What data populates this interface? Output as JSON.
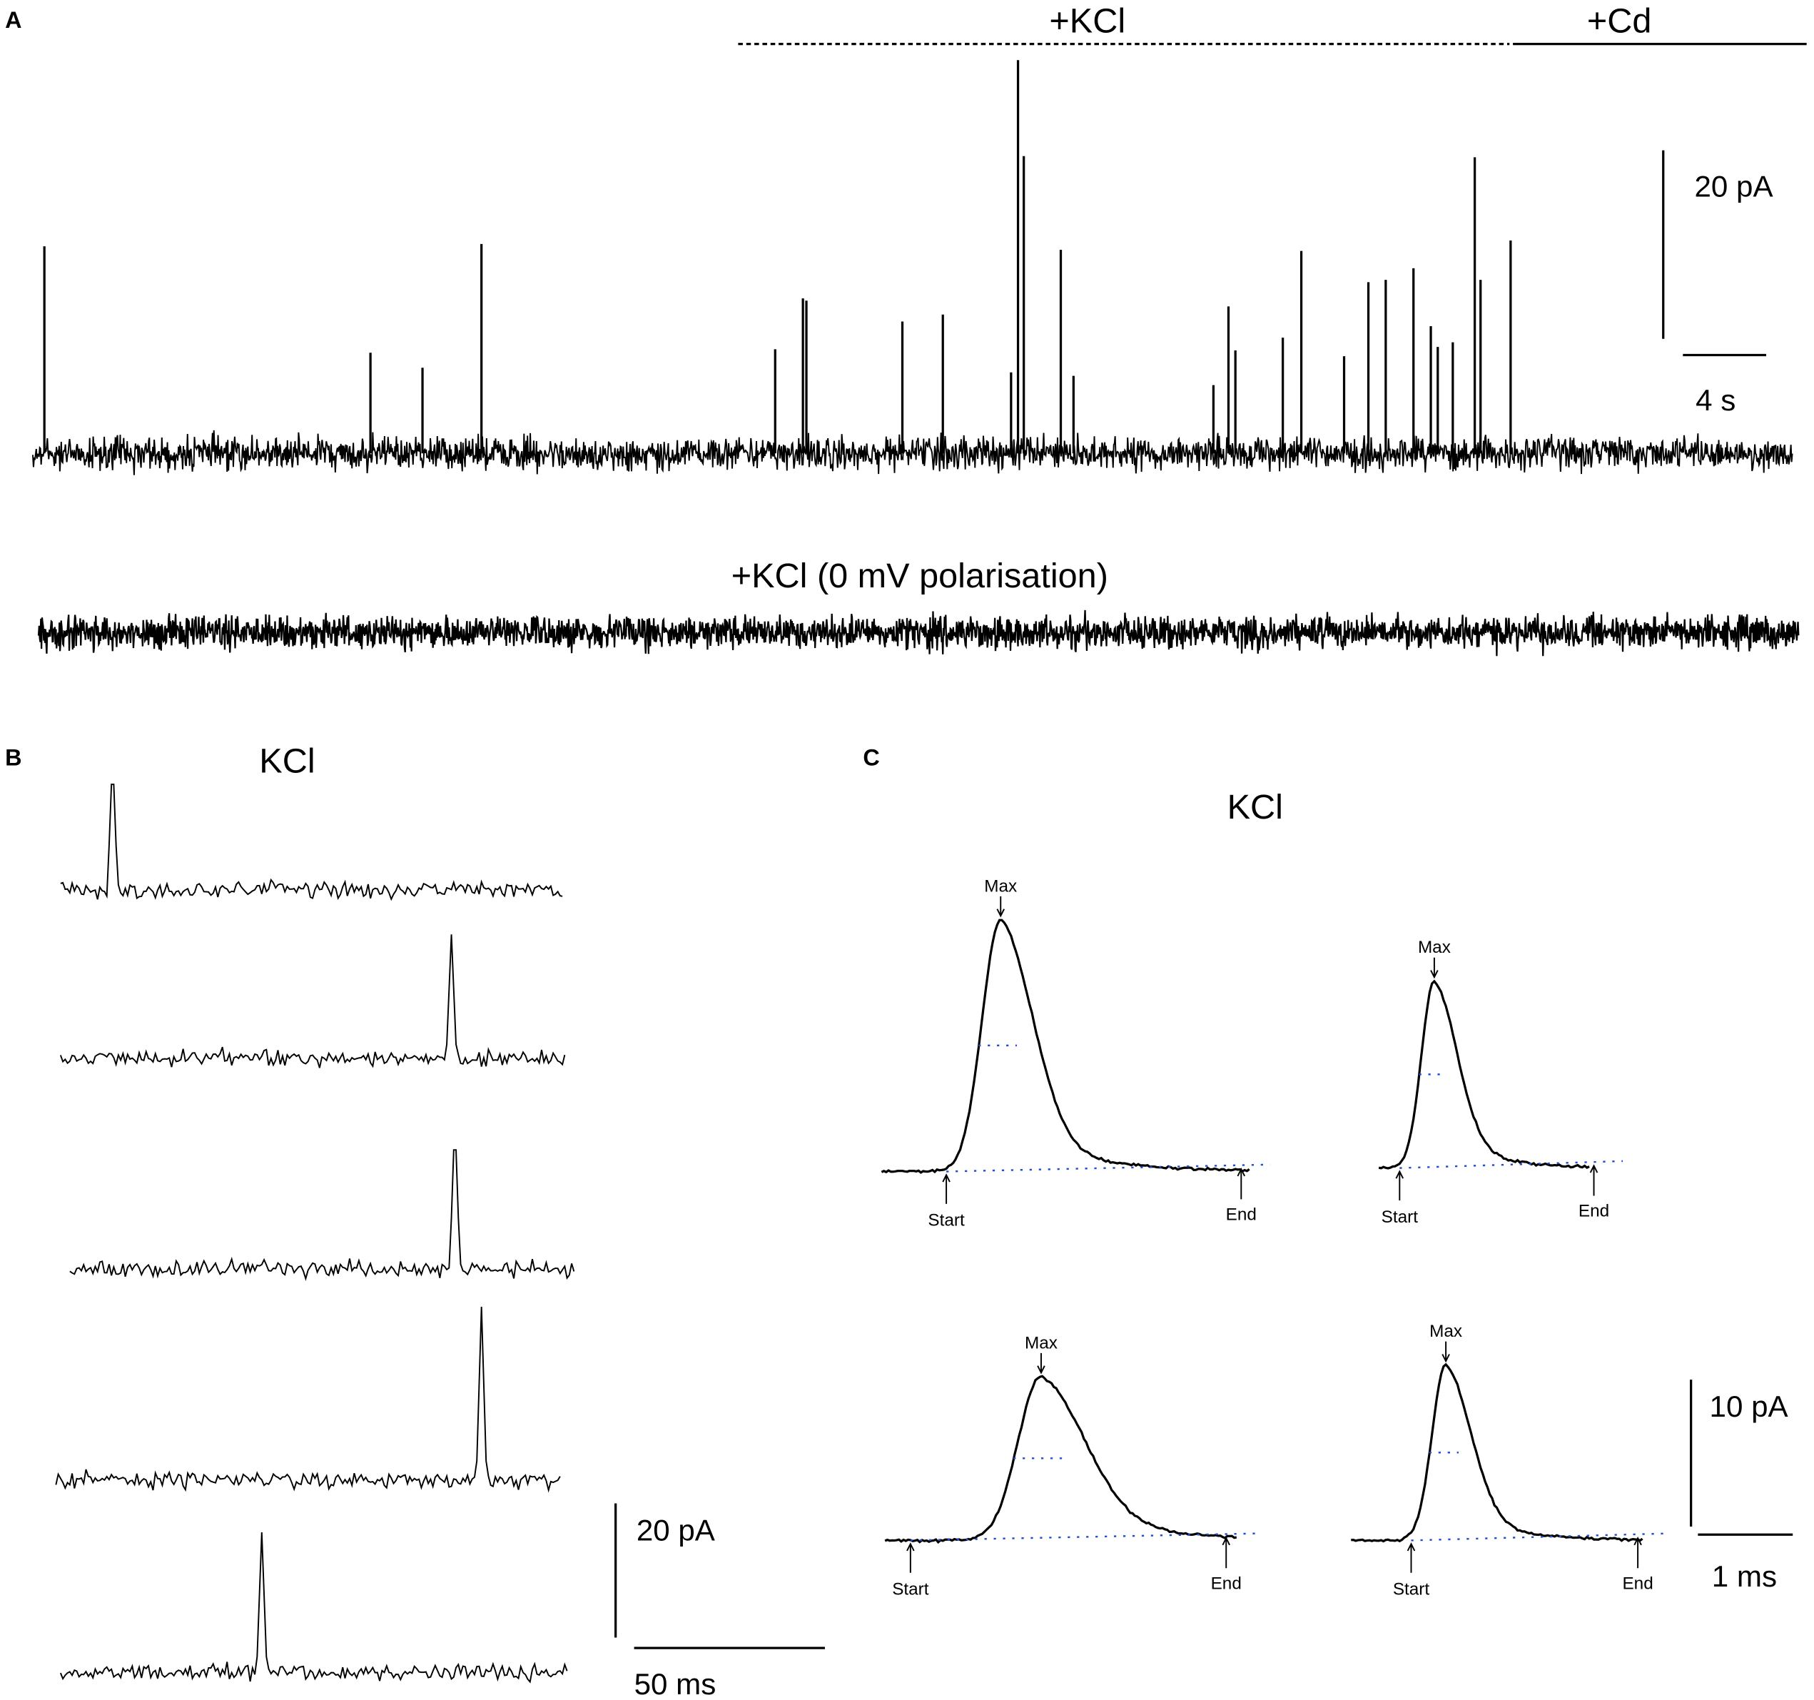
{
  "panels": [
    {
      "label": "A",
      "conditions": [
        "+KCl",
        "+Cd"
      ],
      "scale_bar": {
        "y": "20 pA",
        "x": "4 s"
      },
      "trace_label": "+KCl (0 mV polarisation)"
    },
    {
      "label": "B",
      "title": "KCl",
      "scale_bar": {
        "y": "20 pA",
        "x": "50 ms"
      }
    },
    {
      "label": "C",
      "title": "KCl",
      "scale_bar": {
        "y": "10 pA",
        "x": "1 ms"
      },
      "events": [
        {
          "max": "Max",
          "start": "Start",
          "end": "End"
        },
        {
          "max": "Max",
          "start": "Start",
          "end": "End"
        },
        {
          "max": "Max",
          "start": "Start",
          "end": "End"
        },
        {
          "max": "Max",
          "start": "Start",
          "end": "End"
        }
      ]
    }
  ]
}
